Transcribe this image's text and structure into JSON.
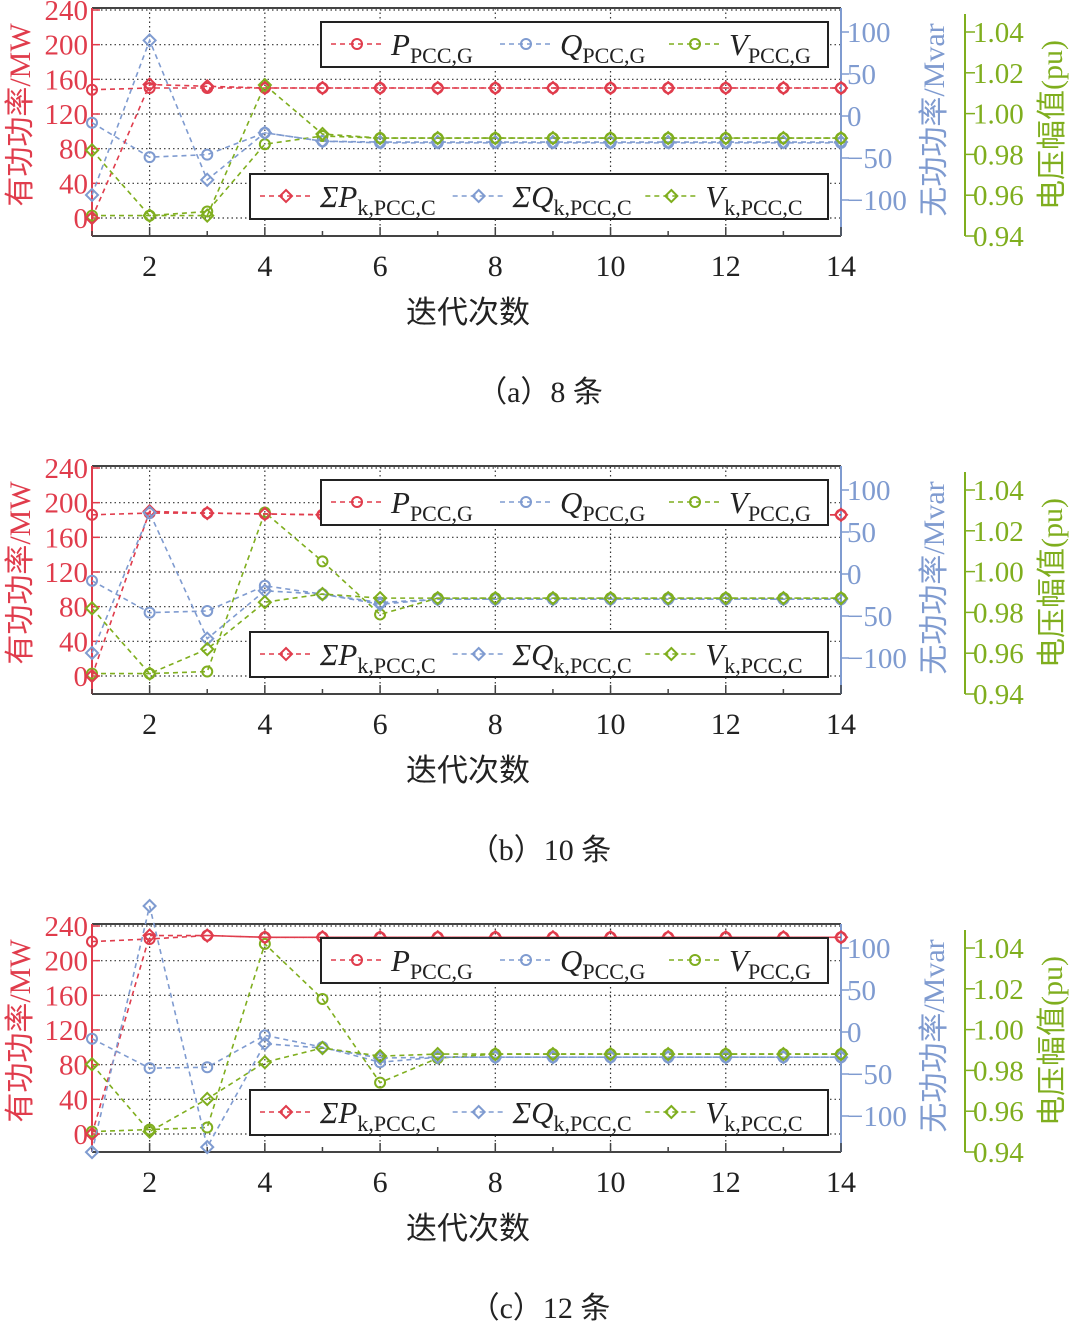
{
  "colors": {
    "p": "#e03c4c",
    "q": "#7f9bd0",
    "v": "#7fae1e",
    "grid": "#333333"
  },
  "chart_data": [
    {
      "type": "line",
      "caption": "（a）8 条",
      "xlabel": "迭代次数",
      "ylabel_left": "有功功率/MW",
      "ylabel_right1": "无功功率/Mvar",
      "ylabel_right2": "电压幅值(pu)",
      "xlim": [
        1,
        14
      ],
      "xticks": [
        "2",
        "4",
        "6",
        "8",
        "10",
        "12",
        "14"
      ],
      "ylim_left": [
        0,
        240
      ],
      "yticks_left": [
        "0",
        "40",
        "80",
        "120",
        "160",
        "200",
        "240"
      ],
      "ylim_right1": [
        -100,
        100
      ],
      "yticks_right1": [
        "-100",
        "-50",
        "0",
        "50",
        "100"
      ],
      "ylim_right2": [
        0.94,
        1.04
      ],
      "yticks_right2": [
        "0.94",
        "0.96",
        "0.98",
        "1.00",
        "1.02",
        "1.04"
      ],
      "x": [
        1,
        2,
        3,
        4,
        5,
        6,
        7,
        8,
        9,
        10,
        11,
        12,
        13,
        14
      ],
      "series": [
        {
          "name": "P",
          "sub": "PCC,G",
          "axis": "left",
          "marker": "circle",
          "color": "p",
          "values": [
            148,
            150,
            150,
            150,
            150,
            150,
            150,
            150,
            150,
            150,
            150,
            150,
            150,
            150
          ]
        },
        {
          "name": "Q",
          "sub": "PCC,G",
          "axis": "right1",
          "marker": "circle",
          "color": "q",
          "values": [
            -8,
            -49,
            -46,
            -20,
            -30,
            -32,
            -32,
            -32,
            -32,
            -32,
            -32,
            -32,
            -32,
            -32
          ]
        },
        {
          "name": "V",
          "sub": "PCC,G",
          "axis": "right2",
          "marker": "circle",
          "color": "v",
          "values": [
            0.95,
            0.95,
            0.952,
            0.985,
            0.989,
            0.988,
            0.988,
            0.988,
            0.988,
            0.988,
            0.988,
            0.988,
            0.988,
            0.988
          ]
        },
        {
          "name": "ΣP",
          "sub": "k,PCC,C",
          "axis": "left",
          "marker": "diamond",
          "color": "p",
          "values": [
            0,
            154,
            152,
            150,
            150,
            150,
            150,
            150,
            150,
            150,
            150,
            150,
            150,
            150
          ]
        },
        {
          "name": "ΣQ",
          "sub": "k,PCC,C",
          "axis": "right1",
          "marker": "diamond",
          "color": "q",
          "values": [
            -94,
            90,
            -76,
            -20,
            -30,
            -31,
            -31,
            -31,
            -31,
            -31,
            -31,
            -31,
            -31,
            -31
          ]
        },
        {
          "name": "V",
          "sub": "k,PCC,C",
          "axis": "right2",
          "marker": "diamond",
          "color": "v",
          "values": [
            0.982,
            0.95,
            0.95,
            1.014,
            0.99,
            0.988,
            0.988,
            0.988,
            0.988,
            0.988,
            0.988,
            0.988,
            0.988,
            0.988
          ]
        }
      ]
    },
    {
      "type": "line",
      "caption": "（b）10 条",
      "xlabel": "迭代次数",
      "ylabel_left": "有功功率/MW",
      "ylabel_right1": "无功功率/Mvar",
      "ylabel_right2": "电压幅值(pu)",
      "xlim": [
        1,
        14
      ],
      "xticks": [
        "2",
        "4",
        "6",
        "8",
        "10",
        "12",
        "14"
      ],
      "ylim_left": [
        0,
        240
      ],
      "yticks_left": [
        "0",
        "40",
        "80",
        "120",
        "160",
        "200",
        "240"
      ],
      "ylim_right1": [
        -100,
        100
      ],
      "yticks_right1": [
        "-100",
        "-50",
        "0",
        "50",
        "100"
      ],
      "ylim_right2": [
        0.94,
        1.04
      ],
      "yticks_right2": [
        "0.94",
        "0.96",
        "0.98",
        "1.00",
        "1.02",
        "1.04"
      ],
      "x": [
        1,
        2,
        3,
        4,
        5,
        6,
        7,
        8,
        9,
        10,
        11,
        12,
        13,
        14
      ],
      "series": [
        {
          "name": "P",
          "sub": "PCC,G",
          "axis": "left",
          "marker": "circle",
          "color": "p",
          "values": [
            186,
            188,
            188,
            187,
            186,
            186,
            186,
            186,
            186,
            186,
            186,
            186,
            186,
            186
          ]
        },
        {
          "name": "Q",
          "sub": "PCC,G",
          "axis": "right1",
          "marker": "circle",
          "color": "q",
          "values": [
            -8,
            -46,
            -44,
            -14,
            -24,
            -34,
            -30,
            -30,
            -30,
            -30,
            -30,
            -30,
            -30,
            -30
          ]
        },
        {
          "name": "V",
          "sub": "PCC,G",
          "axis": "right2",
          "marker": "circle",
          "color": "v",
          "values": [
            0.95,
            0.95,
            0.951,
            1.029,
            1.005,
            0.979,
            0.987,
            0.987,
            0.987,
            0.987,
            0.987,
            0.987,
            0.987,
            0.987
          ]
        },
        {
          "name": "ΣP",
          "sub": "k,PCC,C",
          "axis": "left",
          "marker": "diamond",
          "color": "p",
          "values": [
            0,
            190,
            188,
            187,
            186,
            186,
            186,
            186,
            186,
            186,
            186,
            186,
            186,
            186
          ]
        },
        {
          "name": "ΣQ",
          "sub": "k,PCC,C",
          "axis": "right1",
          "marker": "diamond",
          "color": "q",
          "values": [
            -94,
            73,
            -77,
            -20,
            -24,
            -36,
            -30,
            -30,
            -30,
            -30,
            -30,
            -30,
            -30,
            -30
          ]
        },
        {
          "name": "V",
          "sub": "k,PCC,C",
          "axis": "right2",
          "marker": "diamond",
          "color": "v",
          "values": [
            0.982,
            0.95,
            0.962,
            0.985,
            0.989,
            0.987,
            0.987,
            0.987,
            0.987,
            0.987,
            0.987,
            0.987,
            0.987,
            0.987
          ]
        }
      ]
    },
    {
      "type": "line",
      "caption": "（c）12 条",
      "xlabel": "迭代次数",
      "ylabel_left": "有功功率/MW",
      "ylabel_right1": "无功功率/Mvar",
      "ylabel_right2": "电压幅值(pu)",
      "xlim": [
        1,
        14
      ],
      "xticks": [
        "2",
        "4",
        "6",
        "8",
        "10",
        "12",
        "14"
      ],
      "ylim_left": [
        0,
        240
      ],
      "yticks_left": [
        "0",
        "40",
        "80",
        "120",
        "160",
        "200",
        "240"
      ],
      "ylim_right1": [
        -100,
        100
      ],
      "yticks_right1": [
        "-100",
        "-50",
        "0",
        "50",
        "100"
      ],
      "ylim_right2": [
        0.94,
        1.04
      ],
      "yticks_right2": [
        "0.94",
        "0.96",
        "0.98",
        "1.00",
        "1.02",
        "1.04"
      ],
      "x": [
        1,
        2,
        3,
        4,
        5,
        6,
        7,
        8,
        9,
        10,
        11,
        12,
        13,
        14
      ],
      "series": [
        {
          "name": "P",
          "sub": "PCC,G",
          "axis": "left",
          "marker": "circle",
          "color": "p",
          "values": [
            222,
            225,
            229,
            227,
            227,
            227,
            227,
            227,
            227,
            227,
            227,
            227,
            227,
            227
          ]
        },
        {
          "name": "Q",
          "sub": "PCC,G",
          "axis": "right1",
          "marker": "circle",
          "color": "q",
          "values": [
            -8,
            -43,
            -42,
            -4,
            -18,
            -36,
            -30,
            -30,
            -30,
            -30,
            -30,
            -30,
            -30,
            -30
          ]
        },
        {
          "name": "V",
          "sub": "PCC,G",
          "axis": "right2",
          "marker": "circle",
          "color": "v",
          "values": [
            0.95,
            0.951,
            0.952,
            1.042,
            1.015,
            0.974,
            0.986,
            0.988,
            0.988,
            0.988,
            0.988,
            0.988,
            0.988,
            0.988
          ]
        },
        {
          "name": "ΣP",
          "sub": "k,PCC,C",
          "axis": "left",
          "marker": "diamond",
          "color": "p",
          "values": [
            0,
            229,
            229,
            227,
            227,
            227,
            227,
            227,
            227,
            227,
            227,
            227,
            227,
            227
          ]
        },
        {
          "name": "ΣQ",
          "sub": "k,PCC,C",
          "axis": "right1",
          "marker": "diamond",
          "color": "q",
          "values": [
            -143,
            150,
            -137,
            -14,
            -19,
            -31,
            -30,
            -30,
            -30,
            -30,
            -30,
            -30,
            -30,
            -30
          ]
        },
        {
          "name": "V",
          "sub": "k,PCC,C",
          "axis": "right2",
          "marker": "diamond",
          "color": "v",
          "values": [
            0.983,
            0.95,
            0.966,
            0.984,
            0.991,
            0.987,
            0.988,
            0.988,
            0.988,
            0.988,
            0.988,
            0.988,
            0.988,
            0.988
          ]
        }
      ]
    }
  ]
}
